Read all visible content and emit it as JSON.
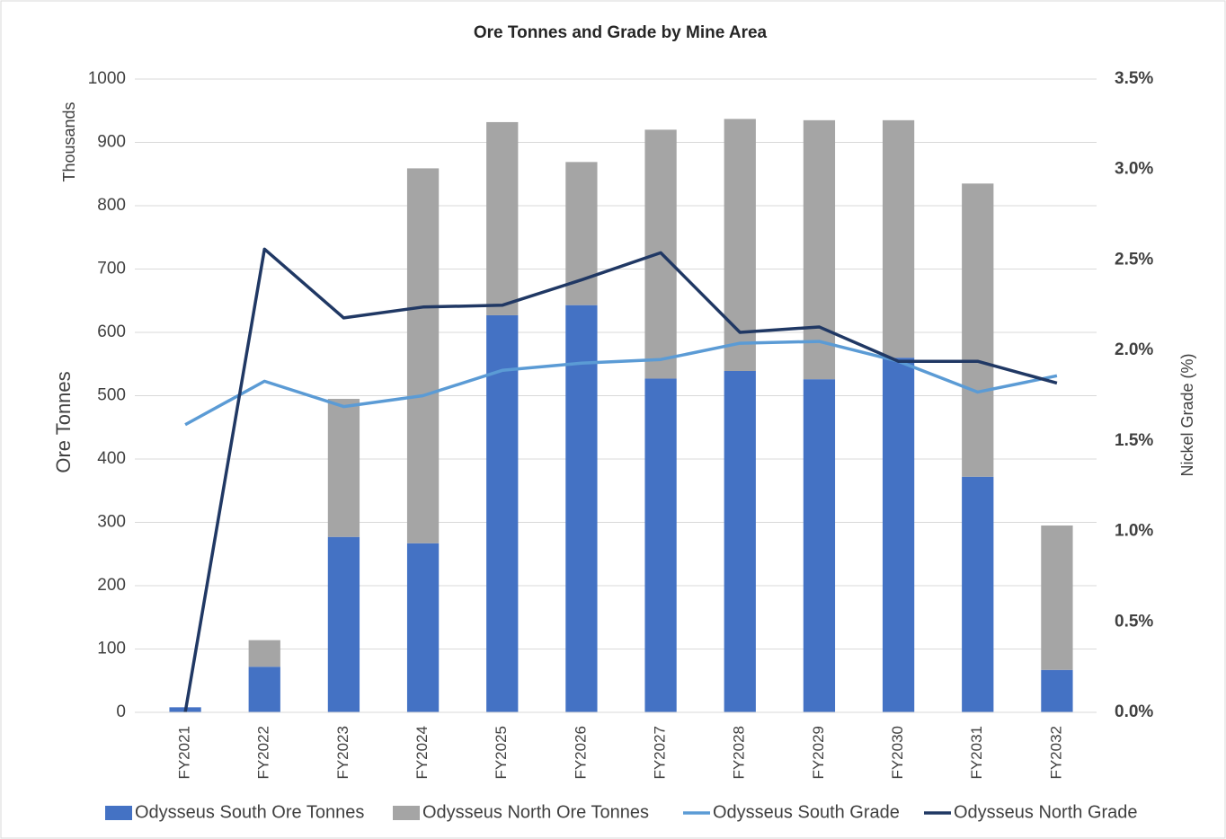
{
  "chart_data": {
    "type": "bar",
    "title": "Ore Tonnes and Grade by Mine Area",
    "y_label": "Ore Tonnes",
    "y_unit_label": "Thousands",
    "y2_label": "Nickel Grade (%)",
    "categories": [
      "FY2021",
      "FY2022",
      "FY2023",
      "FY2024",
      "FY2025",
      "FY2026",
      "FY2027",
      "FY2028",
      "FY2029",
      "FY2030",
      "FY2031",
      "FY2032"
    ],
    "series": [
      {
        "name": "Odysseus South Ore Tonnes",
        "kind": "bar",
        "color": "#4472c4",
        "values": [
          8,
          72,
          277,
          267,
          627,
          643,
          527,
          539,
          526,
          560,
          372,
          67
        ]
      },
      {
        "name": "Odysseus North Ore Tonnes",
        "kind": "bar",
        "color": "#a5a5a5",
        "values": [
          0,
          42,
          218,
          592,
          305,
          226,
          393,
          398,
          409,
          375,
          463,
          228
        ]
      },
      {
        "name": "Odysseus South Grade",
        "kind": "line",
        "axis": "y2",
        "color": "#5b9bd5",
        "values": [
          1.59,
          1.83,
          1.69,
          1.75,
          1.89,
          1.93,
          1.95,
          2.04,
          2.05,
          1.94,
          1.77,
          1.86
        ]
      },
      {
        "name": "Odysseus North Grade",
        "kind": "line",
        "axis": "y2",
        "color": "#203864",
        "values": [
          0,
          2.56,
          2.18,
          2.24,
          2.25,
          2.39,
          2.54,
          2.1,
          2.13,
          1.94,
          1.94,
          1.82
        ]
      }
    ],
    "stacked": true,
    "ylim": [
      0,
      1000
    ],
    "yticks": [
      0,
      100,
      200,
      300,
      400,
      500,
      600,
      700,
      800,
      900,
      1000
    ],
    "y2lim": [
      0,
      3.5
    ],
    "y2ticks": [
      {
        "value": 0,
        "label": "0.0%"
      },
      {
        "value": 0.5,
        "label": "0.5%"
      },
      {
        "value": 1,
        "label": "1.0%"
      },
      {
        "value": 1.5,
        "label": "1.5%"
      },
      {
        "value": 2,
        "label": "2.0%"
      },
      {
        "value": 2.5,
        "label": "2.5%"
      },
      {
        "value": 3,
        "label": "3.0%"
      },
      {
        "value": 3.5,
        "label": "3.5%"
      }
    ],
    "grid": true,
    "legend": "bottom"
  }
}
